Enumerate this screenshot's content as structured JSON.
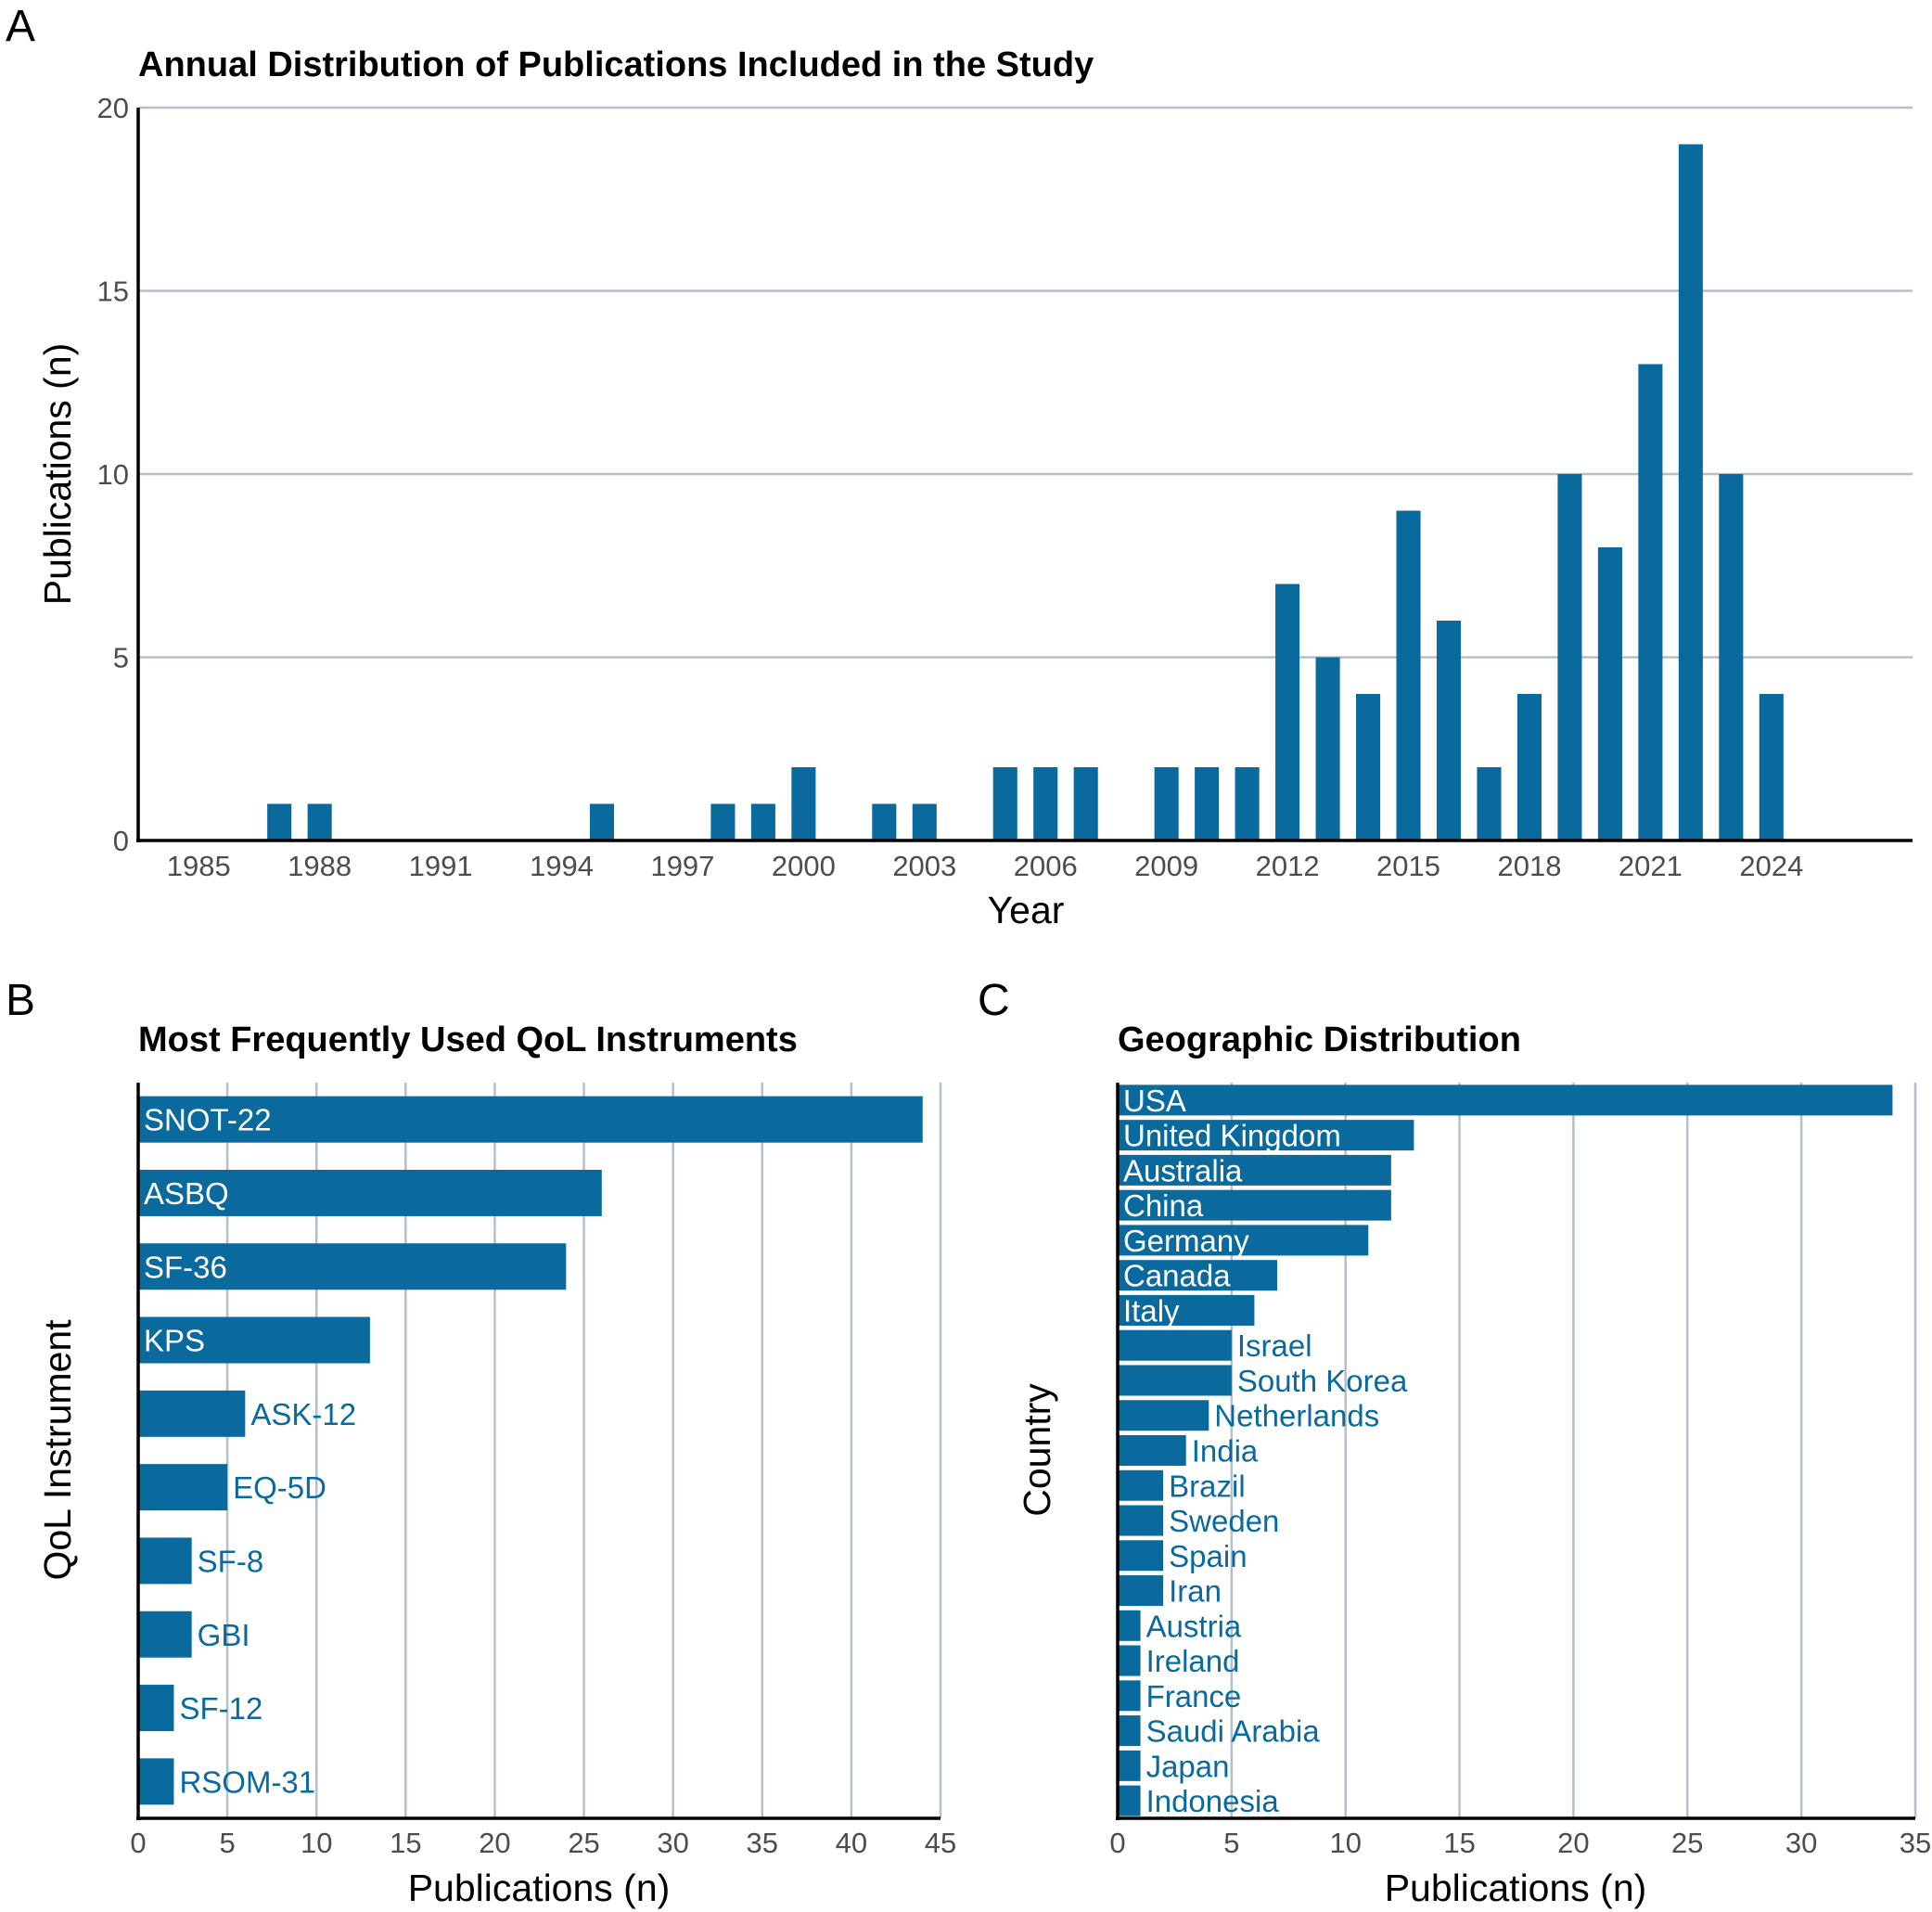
{
  "colors": {
    "bar": "#0a6a9e",
    "grid": "#b5bfcc",
    "axis": "#000000",
    "tick_text": "#4d4d4d"
  },
  "chart_data": [
    {
      "panel": "A",
      "type": "bar",
      "title": "Annual Distribution of Publications Included in the Study",
      "xlabel": "Year",
      "ylabel": "Publications (n)",
      "ylim": [
        0,
        20
      ],
      "yticks": [
        0,
        5,
        10,
        15,
        20
      ],
      "xlim": [
        1983.5,
        2027.5
      ],
      "xticks": [
        1985,
        1988,
        1991,
        1994,
        1997,
        2000,
        2003,
        2006,
        2009,
        2012,
        2015,
        2018,
        2021,
        2024
      ],
      "grid": "horizontal",
      "categories": [
        1987,
        1988,
        1995,
        1998,
        1999,
        2000,
        2002,
        2003,
        2005,
        2006,
        2007,
        2009,
        2010,
        2011,
        2012,
        2013,
        2014,
        2015,
        2016,
        2017,
        2018,
        2019,
        2020,
        2021,
        2022,
        2023,
        2024
      ],
      "values": [
        1,
        1,
        1,
        1,
        1,
        2,
        1,
        1,
        2,
        2,
        2,
        2,
        2,
        2,
        7,
        5,
        4,
        9,
        6,
        2,
        4,
        10,
        8,
        13,
        19,
        10,
        4
      ]
    },
    {
      "panel": "B",
      "type": "bar",
      "orientation": "horizontal",
      "title": "Most Frequently Used QoL Instruments",
      "xlabel": "Publications (n)",
      "ylabel": "QoL Instrument",
      "xlim": [
        0,
        45
      ],
      "xticks": [
        0,
        5,
        10,
        15,
        20,
        25,
        30,
        35,
        40,
        45
      ],
      "grid": "vertical",
      "categories": [
        "SNOT-22",
        "ASBQ",
        "SF-36",
        "KPS",
        "ASK-12",
        "EQ-5D",
        "SF-8",
        "GBI",
        "SF-12",
        "RSOM-31"
      ],
      "values": [
        44,
        26,
        24,
        13,
        6,
        5,
        3,
        3,
        2,
        2
      ]
    },
    {
      "panel": "C",
      "type": "bar",
      "orientation": "horizontal",
      "title": "Geographic Distribution",
      "xlabel": "Publications (n)",
      "ylabel": "Country",
      "xlim": [
        0,
        35
      ],
      "xticks": [
        0,
        5,
        10,
        15,
        20,
        25,
        30,
        35
      ],
      "grid": "vertical",
      "categories": [
        "USA",
        "United Kingdom",
        "Australia",
        "China",
        "Germany",
        "Canada",
        "Italy",
        "Israel",
        "South Korea",
        "Netherlands",
        "India",
        "Brazil",
        "Sweden",
        "Spain",
        "Iran",
        "Austria",
        "Ireland",
        "France",
        "Saudi Arabia",
        "Japan",
        "Indonesia"
      ],
      "values": [
        34,
        13,
        12,
        12,
        11,
        7,
        6,
        5,
        5,
        4,
        3,
        2,
        2,
        2,
        2,
        1,
        1,
        1,
        1,
        1,
        1
      ]
    }
  ]
}
